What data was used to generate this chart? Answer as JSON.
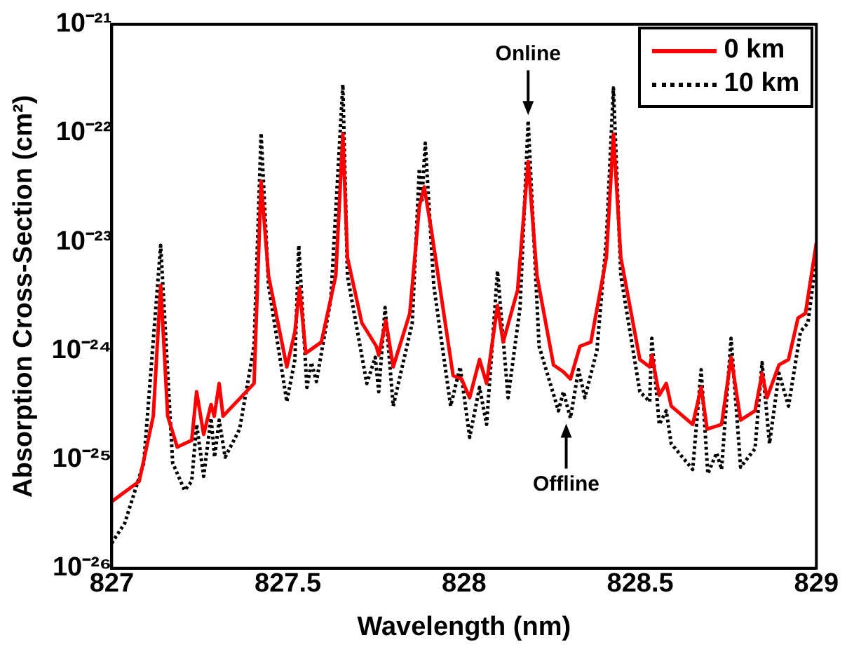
{
  "chart_data": {
    "type": "line",
    "xlabel": "Wavelength (nm)",
    "ylabel": "Absorption Cross-Section (cm²)",
    "log": "y",
    "grid": false,
    "legend": "top right",
    "marker": "none",
    "xlim": [
      827,
      829
    ],
    "xticks": [
      827,
      827.5,
      828,
      828.5,
      829
    ],
    "ylim": [
      1e-26,
      1e-21
    ],
    "yticks": [
      {
        "value": 1e-26,
        "label": "10⁻²⁶"
      },
      {
        "value": 1e-25,
        "label": "10⁻²⁵"
      },
      {
        "value": 1e-24,
        "label": "10⁻²⁴"
      },
      {
        "value": 1e-23,
        "label": "10⁻²³"
      },
      {
        "value": 1e-22,
        "label": "10⁻²²"
      },
      {
        "value": 1e-21,
        "label": "10⁻²¹"
      }
    ],
    "series": [
      {
        "name": "0 km",
        "color": "#ff0000",
        "line_style": "solid",
        "x": [
          827.0,
          827.078,
          827.118,
          827.139,
          827.159,
          827.186,
          827.227,
          827.241,
          827.261,
          827.282,
          827.291,
          827.305,
          827.316,
          827.404,
          827.424,
          827.445,
          827.497,
          827.52,
          827.533,
          827.551,
          827.595,
          827.636,
          827.656,
          827.669,
          827.71,
          827.751,
          827.758,
          827.778,
          827.799,
          827.846,
          827.873,
          827.887,
          827.907,
          827.969,
          827.993,
          828.016,
          828.044,
          828.064,
          828.095,
          828.111,
          828.152,
          828.182,
          828.207,
          828.254,
          828.282,
          828.302,
          828.329,
          828.36,
          828.404,
          828.424,
          828.445,
          828.499,
          828.527,
          828.533,
          828.554,
          828.574,
          828.588,
          828.649,
          828.673,
          828.69,
          828.731,
          828.758,
          828.785,
          828.826,
          828.846,
          828.86,
          828.894,
          828.921,
          828.948,
          828.969,
          829.0
        ],
        "values": [
          4.1e-26,
          6.3e-26,
          2.5e-25,
          4e-24,
          2.5e-25,
          1.3e-25,
          1.5e-25,
          4.2e-25,
          1.7e-25,
          3.2e-25,
          2.5e-25,
          5e-25,
          2.5e-25,
          5e-25,
          3.6e-23,
          4.9e-24,
          7.1e-25,
          1.5e-24,
          3.8e-24,
          9.5e-25,
          1.2e-24,
          4.9e-24,
          9.8e-23,
          7.2e-24,
          1.8e-24,
          1.1e-24,
          9.1e-25,
          1.9e-24,
          7.1e-25,
          2.2e-24,
          2.1e-23,
          3.2e-23,
          1.3e-23,
          5.9e-25,
          5.5e-25,
          3.7e-25,
          8.3e-25,
          5e-25,
          2.6e-24,
          1.2e-24,
          3.6e-24,
          5.5e-23,
          4.9e-24,
          7.4e-25,
          6.4e-25,
          5.5e-25,
          1.1e-24,
          1.2e-24,
          7.2e-24,
          9.8e-23,
          7.2e-24,
          8.3e-25,
          7.1e-25,
          9.1e-25,
          3.9e-25,
          5e-25,
          3.1e-25,
          2.1e-25,
          4.6e-25,
          1.9e-25,
          2.1e-25,
          8.7e-25,
          2.3e-25,
          2.8e-25,
          6.2e-25,
          3.7e-25,
          7.4e-25,
          8.3e-25,
          2e-24,
          2.2e-24,
          9.8e-24
        ]
      },
      {
        "name": "10 km",
        "color": "#000000",
        "line_style": "dotted",
        "x": [
          827.0,
          827.037,
          827.091,
          827.139,
          827.173,
          827.207,
          827.227,
          827.241,
          827.261,
          827.282,
          827.292,
          827.305,
          827.322,
          827.363,
          827.404,
          827.424,
          827.445,
          827.497,
          827.52,
          827.531,
          827.554,
          827.567,
          827.581,
          827.622,
          827.656,
          827.669,
          827.724,
          827.748,
          827.758,
          827.776,
          827.799,
          827.853,
          827.873,
          827.88,
          827.89,
          827.914,
          827.962,
          827.989,
          828.016,
          828.044,
          828.064,
          828.095,
          828.125,
          828.159,
          828.182,
          828.213,
          828.268,
          828.282,
          828.302,
          828.325,
          828.343,
          828.377,
          828.404,
          828.424,
          828.445,
          828.499,
          828.527,
          828.533,
          828.554,
          828.574,
          828.588,
          828.649,
          828.673,
          828.692,
          828.717,
          828.731,
          828.758,
          828.785,
          828.826,
          828.846,
          828.867,
          828.894,
          828.921,
          828.955,
          828.976,
          829.0
        ],
        "values": [
          1.7e-26,
          2.6e-26,
          9.3e-26,
          9.3e-24,
          9.3e-26,
          5.2e-26,
          6.3e-26,
          2.1e-25,
          7e-26,
          2.4e-25,
          1.05e-25,
          2.3e-25,
          1.05e-25,
          1.9e-25,
          1.1e-24,
          1e-22,
          4e-24,
          3.4e-25,
          8.3e-25,
          9.3e-24,
          4.6e-25,
          7.8e-25,
          5.2e-25,
          3e-24,
          2.8e-22,
          4.9e-24,
          5e-25,
          8.7e-25,
          4.2e-25,
          2.5e-24,
          3.1e-25,
          1.8e-24,
          4.7e-23,
          2.3e-23,
          8.1e-23,
          4e-24,
          3.1e-25,
          7.1e-25,
          1.6e-25,
          4.6e-25,
          2.1e-25,
          5.4e-24,
          3.7e-25,
          2.5e-24,
          1.3e-22,
          1.1e-24,
          2.8e-25,
          4.2e-25,
          2.4e-25,
          6.7e-25,
          3.7e-25,
          1e-24,
          1.07e-23,
          2.6e-22,
          4.9e-24,
          4.2e-25,
          3.4e-25,
          1.3e-24,
          2.1e-25,
          2.8e-25,
          1.4e-25,
          8.1e-26,
          6.7e-25,
          7.4e-26,
          1.15e-25,
          8.1e-26,
          1.3e-24,
          8.5e-26,
          1.26e-25,
          7.8e-25,
          1.4e-25,
          6.2e-25,
          3.1e-25,
          1.5e-24,
          1.8e-24,
          7.2e-24
        ]
      }
    ],
    "annotations": [
      {
        "text": "Online",
        "x": 828.182,
        "y": 1.3e-22
      },
      {
        "text": "Offline",
        "x": 828.29,
        "y": 2.4e-25
      }
    ]
  }
}
